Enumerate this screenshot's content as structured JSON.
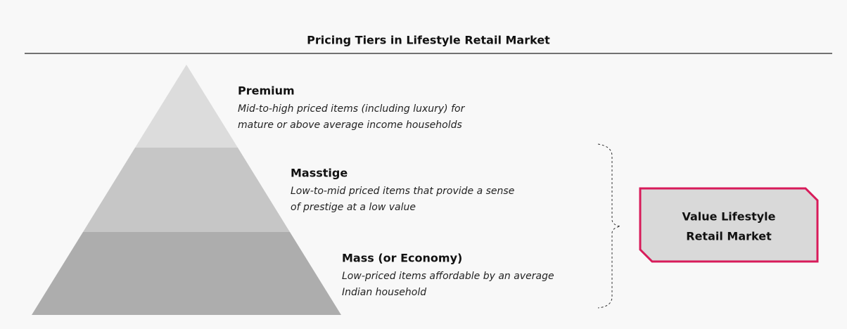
{
  "title": "Pricing Tiers in Lifestyle Retail Market",
  "tiers": [
    {
      "name": "Premium",
      "description": [
        "Mid-to-high priced items (including luxury) for",
        "mature or above average income households"
      ]
    },
    {
      "name": "Masstige",
      "description": [
        "Low-to-mid priced items that provide a sense",
        "of prestige at a low value"
      ]
    },
    {
      "name": "Mass (or Economy)",
      "description": [
        "Low-priced items affordable by an average",
        "Indian household"
      ]
    }
  ],
  "callout": {
    "label": [
      "Value Lifestyle",
      "Retail Market"
    ]
  }
}
